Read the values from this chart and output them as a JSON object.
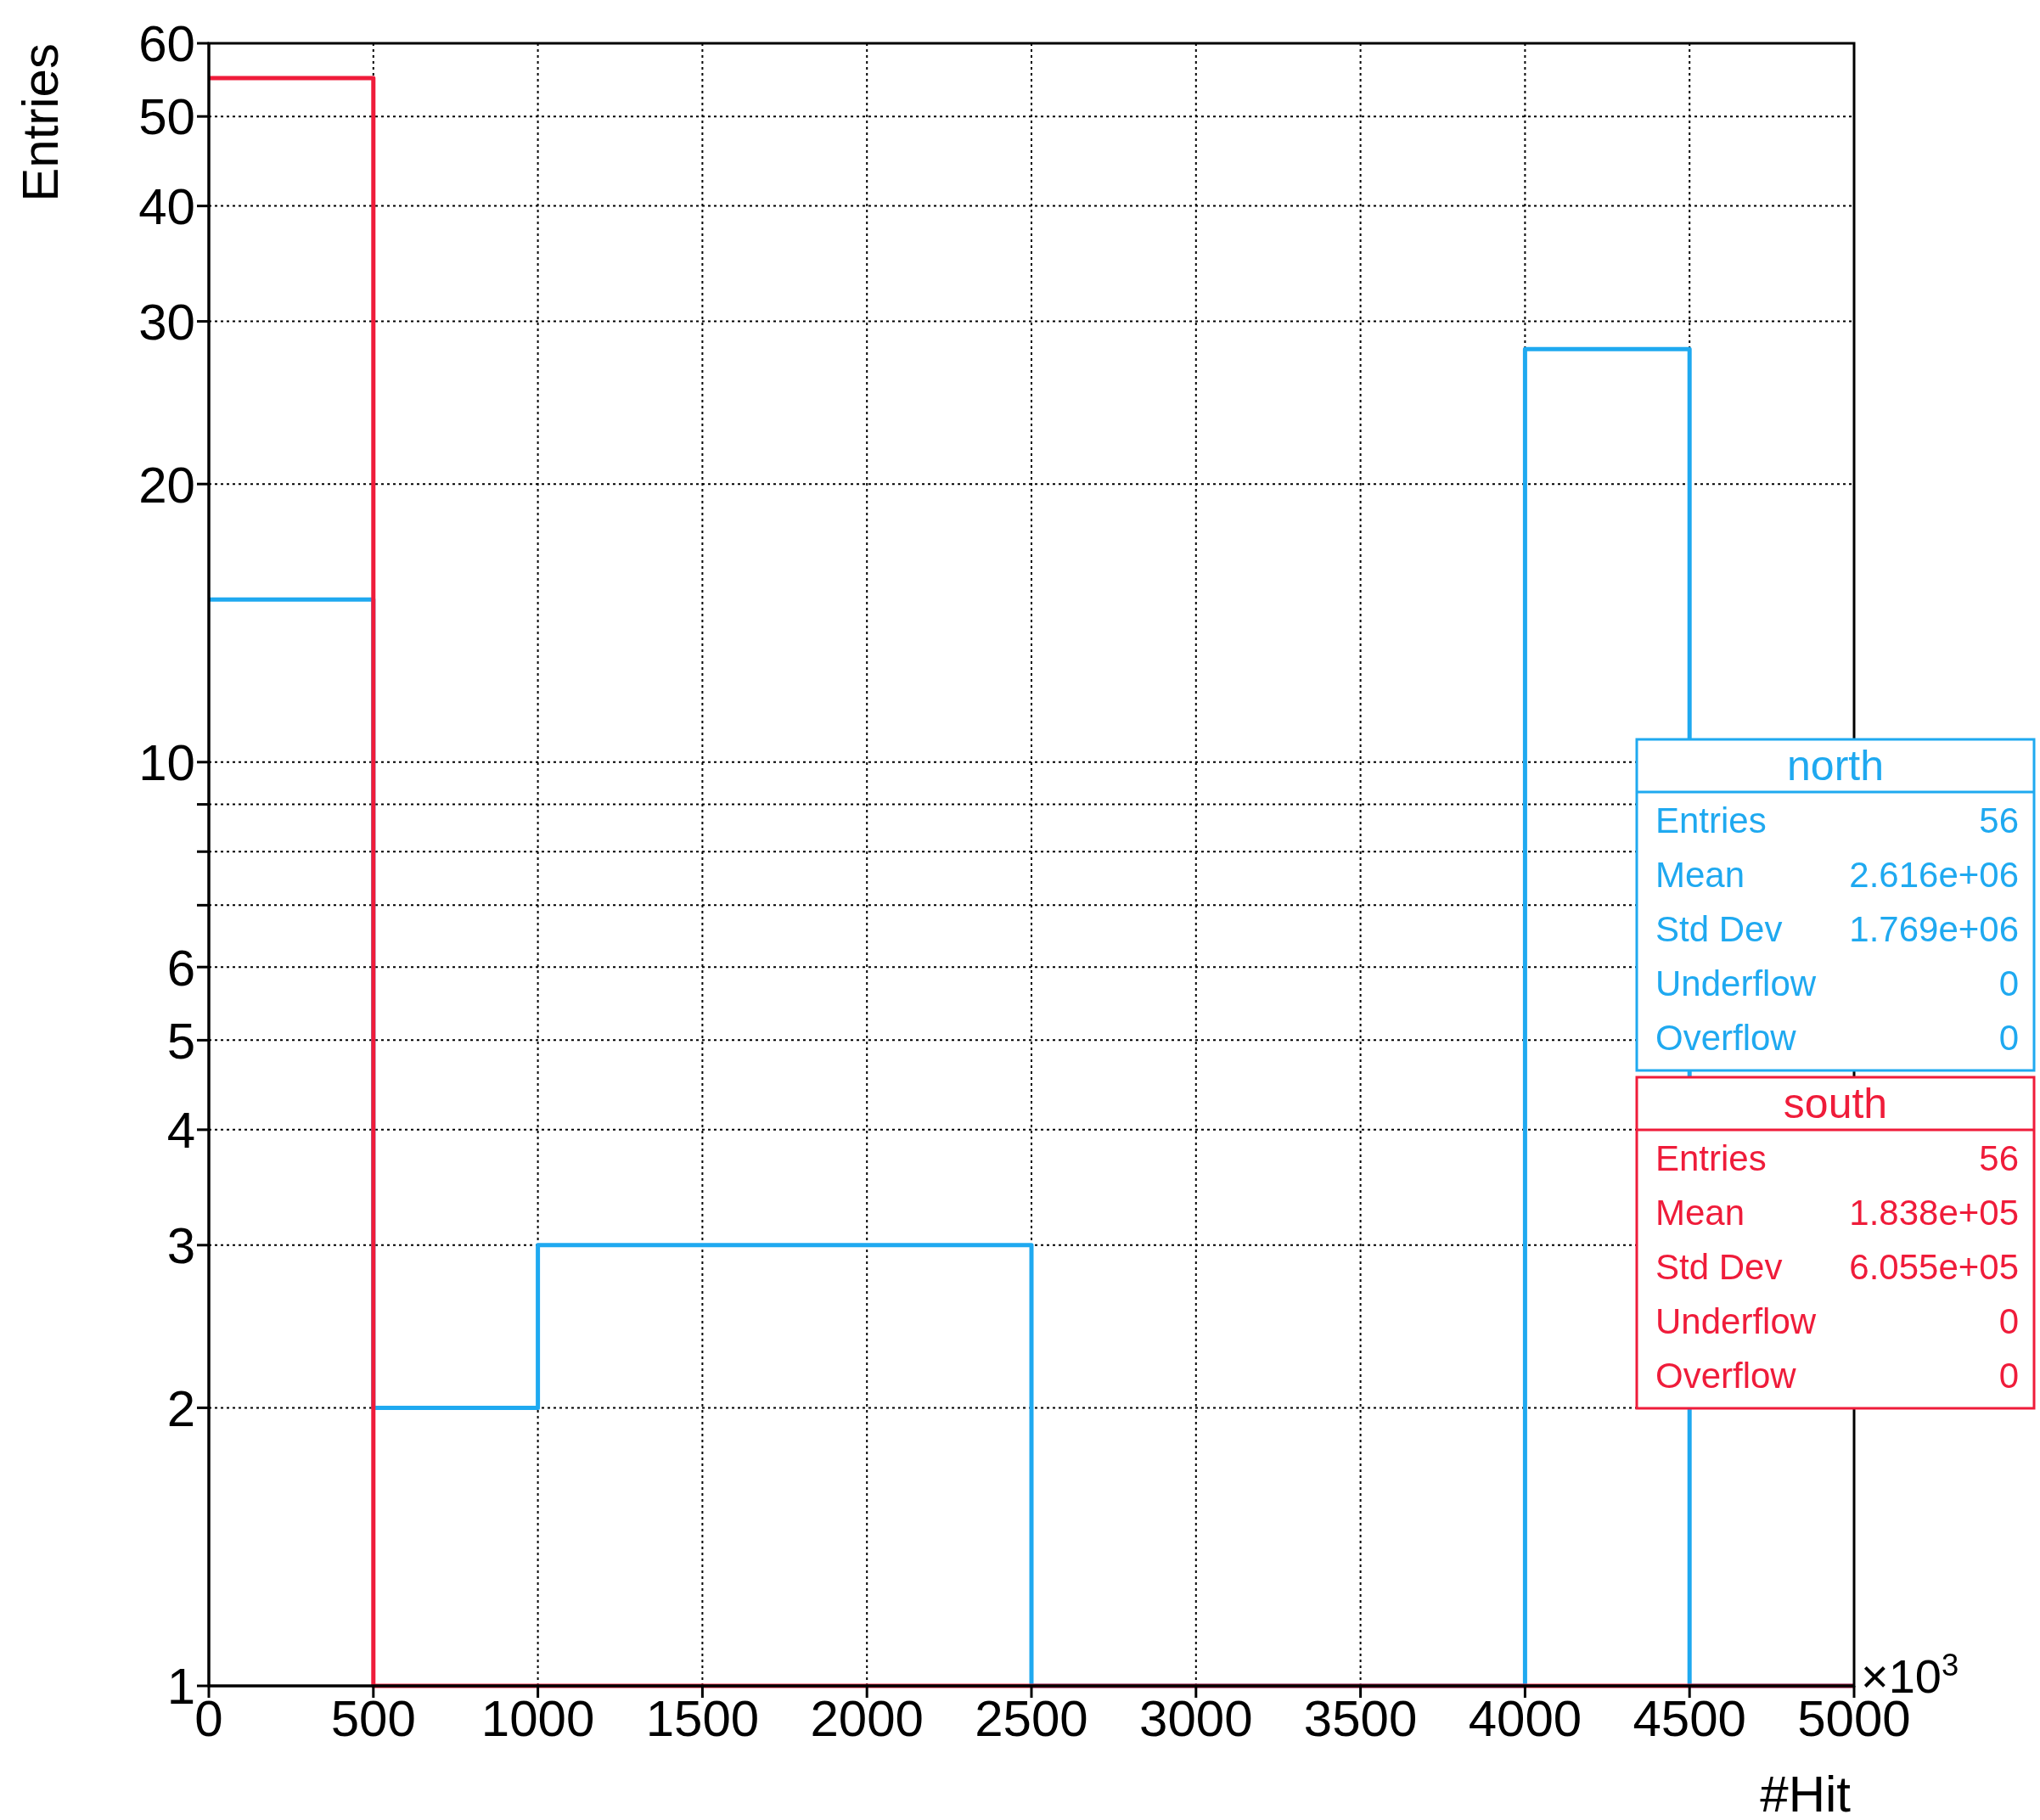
{
  "chart_data": {
    "type": "histogram",
    "xlabel": "#Hit",
    "ylabel": "Entries",
    "bins": [
      0,
      500,
      1000,
      1500,
      2000,
      2500,
      3000,
      3500,
      4000,
      4500,
      5000
    ],
    "series": [
      {
        "name": "north",
        "color": "#1fa9f0",
        "values": [
          15,
          2,
          3,
          3,
          3,
          null,
          null,
          null,
          28,
          null
        ]
      },
      {
        "name": "south",
        "color": "#ef1c3a",
        "values": [
          55,
          null,
          null,
          null,
          null,
          null,
          null,
          null,
          null,
          null
        ]
      }
    ],
    "xlim": [
      0,
      5000
    ],
    "xticks": [
      0,
      500,
      1000,
      1500,
      2000,
      2500,
      3000,
      3500,
      4000,
      4500,
      5000
    ],
    "ylim": [
      1,
      60
    ],
    "log": "y",
    "yticks": [
      1,
      2,
      3,
      4,
      5,
      6,
      {
        "value": 7,
        "label": null
      },
      {
        "value": 8,
        "label": null
      },
      {
        "value": 9,
        "label": null
      },
      10,
      20,
      30,
      40,
      50,
      60
    ],
    "grid": true,
    "legend": "right",
    "annotations": [
      "×10$^{3}$",
      "Entries 56",
      "Mean 2.616e+06",
      "Std Dev 1.769e+06",
      "Underflow 0",
      "Overflow 0",
      "Entries 56",
      "Mean 1.838e+05",
      "Std Dev 6.055e+05",
      "Underflow 0",
      "Overflow 0"
    ]
  }
}
